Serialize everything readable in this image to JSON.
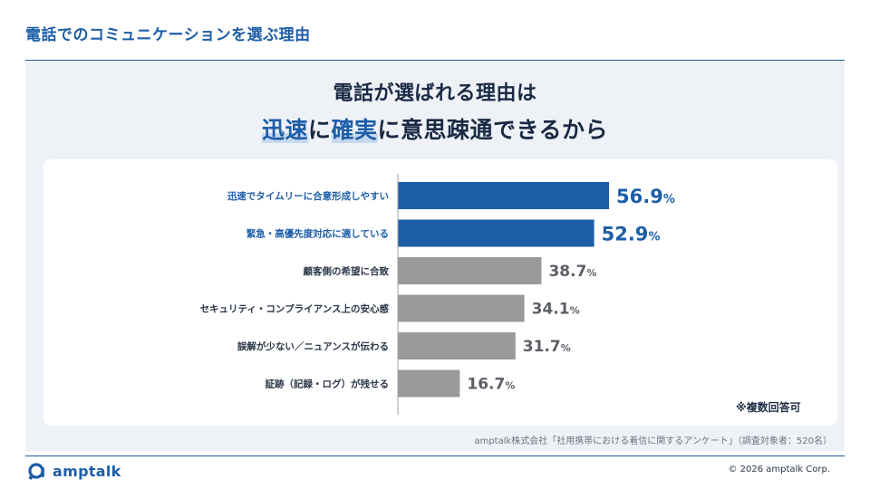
{
  "header": {
    "title": "電話でのコミュニケーションを選ぶ理由"
  },
  "headline": {
    "line1": "電話が選ばれる理由は",
    "line2_hl1": "迅速",
    "line2_mid": "に",
    "line2_hl2": "確実",
    "line2_rest": "に意思疎通できるから"
  },
  "chart_data": {
    "type": "bar",
    "orientation": "horizontal",
    "unit": "%",
    "categories": [
      "迅速でタイムリーに合意形成しやすい",
      "緊急・高優先度対応に適している",
      "顧客側の希望に合致",
      "セキュリティ・コンプライアンス上の安心感",
      "誤解が少ない／ニュアンスが伝わる",
      "証跡（記録・ログ）が残せる"
    ],
    "values": [
      56.9,
      52.9,
      38.7,
      34.1,
      31.7,
      16.7
    ],
    "highlighted": [
      true,
      true,
      false,
      false,
      false,
      false
    ],
    "xlim": [
      0,
      100
    ],
    "grid": false,
    "legend": "none"
  },
  "colors": {
    "accent": "#1d5ea8",
    "bar_highlight": "#1d5ea8",
    "bar_default": "#9a9a9a",
    "value_default": "#5c5f66"
  },
  "note": "※複数回答可",
  "source": "amptalk株式会社「社用携帯における着信に関するアンケート」（調査対象者：520名）",
  "footer": {
    "logo_icon": "amptalk-logo-icon",
    "logo_text": "amptalk",
    "copyright": "© 2026 amptalk Corp."
  }
}
